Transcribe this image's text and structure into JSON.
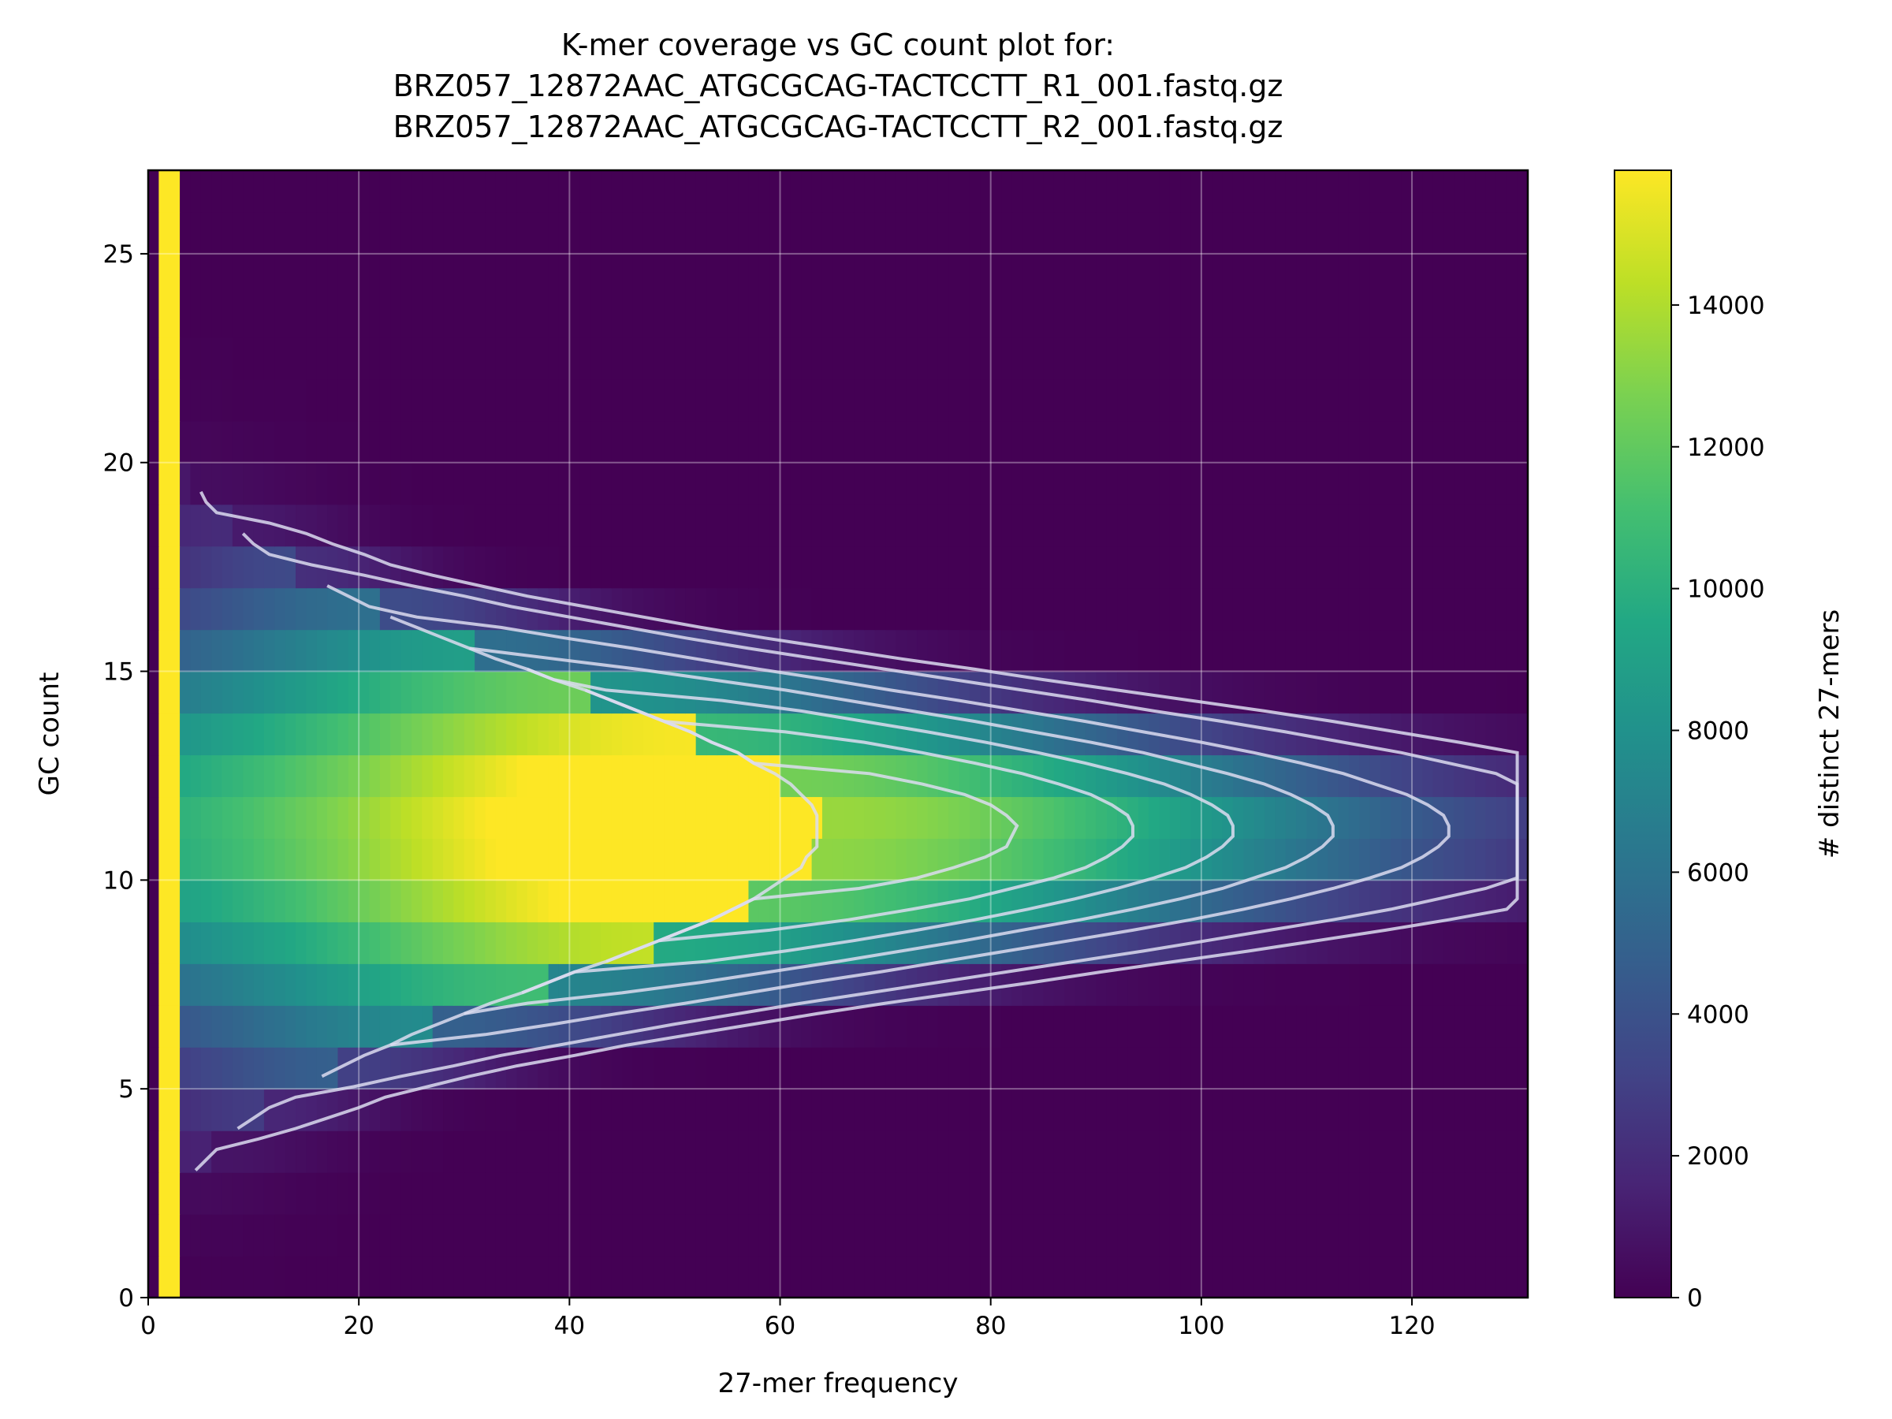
{
  "chart_data": {
    "type": "heatmap",
    "title_lines": [
      "K-mer coverage vs GC count plot for:",
      "BRZ057_12872AAC_ATGCGCAG-TACTCCTT_R1_001.fastq.gz",
      "BRZ057_12872AAC_ATGCGCAG-TACTCCTT_R2_001.fastq.gz"
    ],
    "xlabel": "27-mer frequency",
    "ylabel": "GC count",
    "colorbar_label": "# distinct 27-mers",
    "xlim": [
      0,
      131
    ],
    "ylim": [
      0,
      27
    ],
    "x_ticks": [
      0,
      20,
      40,
      60,
      80,
      100,
      120
    ],
    "y_ticks": [
      0,
      5,
      10,
      15,
      20,
      25
    ],
    "colorbar_range": [
      0,
      15900
    ],
    "colorbar_ticks": [
      0,
      2000,
      4000,
      6000,
      8000,
      10000,
      12000,
      14000
    ],
    "colormap": "viridis",
    "grid": true,
    "contour_color": "#dcdcf0",
    "contour_levels": [
      1000,
      2000,
      4000,
      6000,
      8000,
      10000,
      12000,
      14000
    ],
    "model": {
      "gc_center": 11.2,
      "gc_sigma": 3.6,
      "peak_frequency": 64,
      "frequency_spread": 0.6,
      "peak_count": 13500,
      "low_frequency_cutoff": 3
    }
  }
}
